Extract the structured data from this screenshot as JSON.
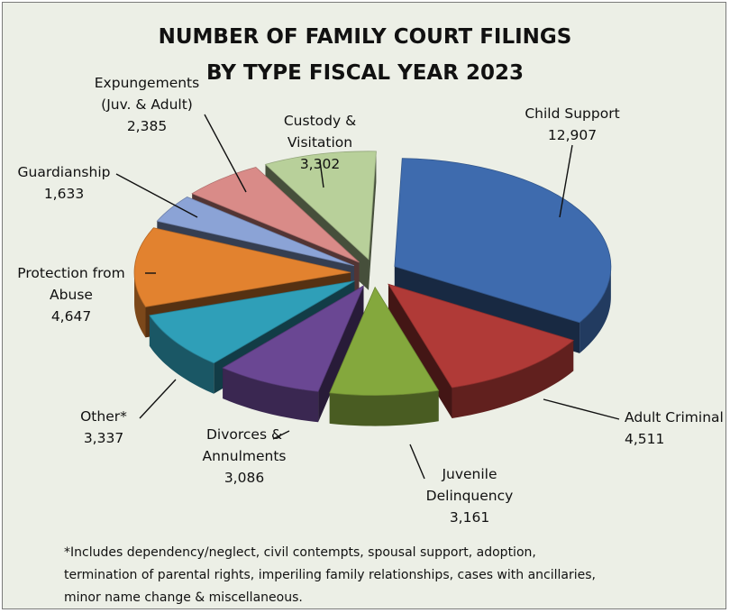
{
  "chart_data": {
    "type": "pie",
    "title_lines": [
      "NUMBER OF FAMILY COURT FILINGS",
      "BY TYPE FISCAL YEAR 2023"
    ],
    "slices": [
      {
        "label_lines": [
          "Child Support"
        ],
        "value": 12907,
        "value_text": "12,907",
        "color": "#3e6bae"
      },
      {
        "label_lines": [
          "Adult Criminal"
        ],
        "value": 4511,
        "value_text": "4,511",
        "color": "#b03a37"
      },
      {
        "label_lines": [
          "Juvenile",
          "Delinquency"
        ],
        "value": 3161,
        "value_text": "3,161",
        "color": "#84a83d"
      },
      {
        "label_lines": [
          "Divorces &",
          "Annulments"
        ],
        "value": 3086,
        "value_text": "3,086",
        "color": "#6a4793"
      },
      {
        "label_lines": [
          "Other*"
        ],
        "value": 3337,
        "value_text": "3,337",
        "color": "#2f9fb8"
      },
      {
        "label_lines": [
          "Protection from",
          "Abuse"
        ],
        "value": 4647,
        "value_text": "4,647",
        "color": "#e2822f"
      },
      {
        "label_lines": [
          "Guardianship"
        ],
        "value": 1633,
        "value_text": "1,633",
        "color": "#8ba3d6"
      },
      {
        "label_lines": [
          "Expungements",
          "(Juv. & Adult)"
        ],
        "value": 2385,
        "value_text": "2,385",
        "color": "#d98b88"
      },
      {
        "label_lines": [
          "Custody &",
          "Visitation"
        ],
        "value": 3302,
        "value_text": "3,302",
        "color": "#b8d09a"
      }
    ],
    "footnote_lines": [
      "*Includes dependency/neglect, civil contempts, spousal support, adoption,",
      "termination of parental rights, imperiling family relationships, cases with ancillaries,",
      "minor name change & miscellaneous."
    ]
  }
}
